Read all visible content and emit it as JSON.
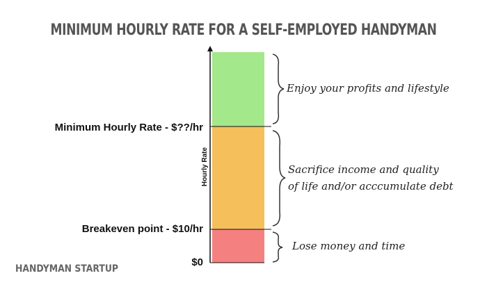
{
  "title": "MINIMUM HOURLY RATE FOR A SELF-EMPLOYED HANDYMAN",
  "axis_label": "Hourly Rate",
  "levels": [
    "Minimum Hourly Rate - $??/hr",
    "Breakeven point - $10/hr",
    "$0"
  ],
  "zones": [
    {
      "lines": [
        "Enjoy your profits and lifestyle"
      ]
    },
    {
      "lines": [
        "Sacrifice income and quality",
        "of life and/or acccumulate debt"
      ]
    },
    {
      "lines": [
        "Lose money and time"
      ]
    }
  ],
  "logo": "HANDYMAN STARTUP"
}
